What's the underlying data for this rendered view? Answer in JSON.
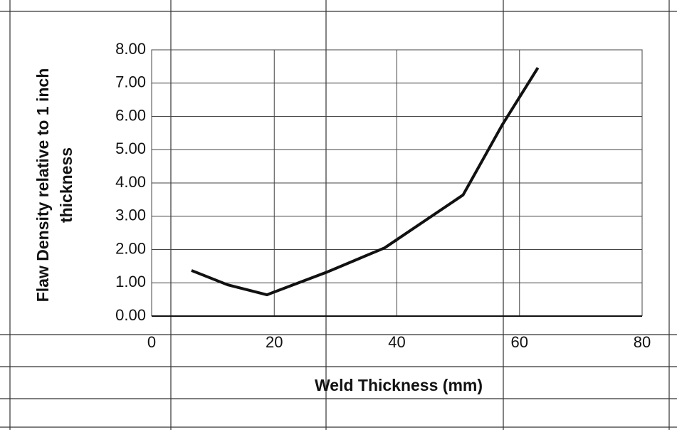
{
  "chart_data": {
    "type": "line",
    "xlabel": "Weld Thickness (mm)",
    "ylabel": [
      "Flaw Density relative to 1 inch",
      "thickness"
    ],
    "x": [
      6.5,
      12.4,
      18.8,
      28.7,
      38,
      50.8,
      57.2,
      63
    ],
    "series": [
      {
        "name": "Flaw Density",
        "color": "#111111",
        "values": [
          1.37,
          0.94,
          0.64,
          1.33,
          2.05,
          3.64,
          5.75,
          7.46
        ]
      }
    ],
    "xlim": [
      0,
      80
    ],
    "xticks": [
      0,
      20,
      40,
      60,
      80
    ],
    "ylim": [
      0,
      8
    ],
    "yticks": [
      {
        "value": 0,
        "label": "0.00"
      },
      {
        "value": 1,
        "label": "1.00"
      },
      {
        "value": 2,
        "label": "2.00"
      },
      {
        "value": 3,
        "label": "3.00"
      },
      {
        "value": 4,
        "label": "4.00"
      },
      {
        "value": 5,
        "label": "5.00"
      },
      {
        "value": 6,
        "label": "6.00"
      },
      {
        "value": 7,
        "label": "7.00"
      },
      {
        "value": 8,
        "label": "8.00"
      }
    ],
    "grid": true
  }
}
